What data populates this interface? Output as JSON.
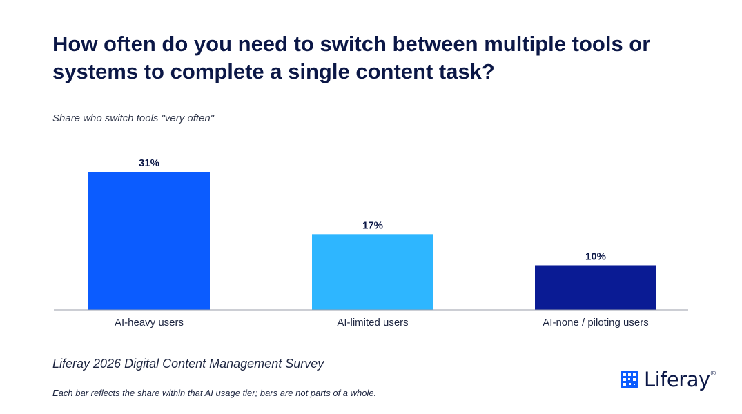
{
  "header": {
    "title": "How often do you need to switch between multiple tools or systems to complete a single content task?",
    "subtitle": "Share who switch tools \"very often\""
  },
  "chart_data": {
    "type": "bar",
    "categories": [
      "AI-heavy users",
      "AI-limited users",
      "AI-none / piloting users"
    ],
    "values": [
      31,
      17,
      10
    ],
    "data_labels": [
      "31%",
      "17%",
      "10%"
    ],
    "unit": "%",
    "colors": [
      "#0b5cff",
      "#2eb6ff",
      "#0a1b94"
    ],
    "ylim": [
      0,
      31
    ],
    "grid": false,
    "legend": "none",
    "xlabel": "",
    "ylabel": ""
  },
  "footer": {
    "source": "Liferay 2026 Digital Content Management Survey",
    "note": "Each bar reflects the share within that AI usage tier; bars are not parts of a whole."
  },
  "logo": {
    "text": "Liferay",
    "mark": "®",
    "icon": "liferay-logo-icon",
    "color": "#0b5cff"
  }
}
